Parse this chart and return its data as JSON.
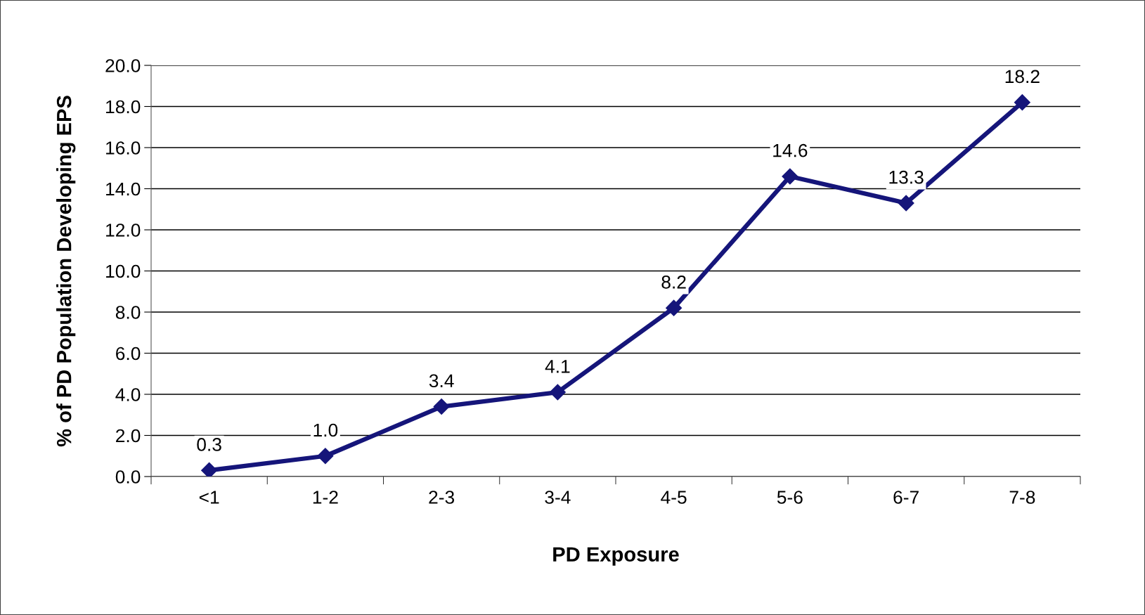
{
  "chart_data": {
    "type": "line",
    "xlabel": "PD Exposure",
    "ylabel": "% of PD Population Developing EPS",
    "categories": [
      "<1",
      "1-2",
      "2-3",
      "3-4",
      "4-5",
      "5-6",
      "6-7",
      "7-8"
    ],
    "values": [
      0.3,
      1.0,
      3.4,
      4.1,
      8.2,
      14.6,
      13.3,
      18.2
    ],
    "value_labels": [
      "0.3",
      "1.0",
      "3.4",
      "4.1",
      "8.2",
      "14.6",
      "13.3",
      "18.2"
    ],
    "color": "#15157a",
    "marker": "diamond",
    "line_style": "solid",
    "grid": "y",
    "ylim": [
      0,
      20
    ],
    "yticks": [
      {
        "value": 0,
        "label": "0.0"
      },
      {
        "value": 2,
        "label": "2.0"
      },
      {
        "value": 4,
        "label": "4.0"
      },
      {
        "value": 6,
        "label": "6.0"
      },
      {
        "value": 8,
        "label": "8.0"
      },
      {
        "value": 10,
        "label": "10.0"
      },
      {
        "value": 12,
        "label": "12.0"
      },
      {
        "value": 14,
        "label": "14.0"
      },
      {
        "value": 16,
        "label": "16.0"
      },
      {
        "value": 18,
        "label": "18.0"
      },
      {
        "value": 20,
        "label": "20.0"
      }
    ]
  }
}
